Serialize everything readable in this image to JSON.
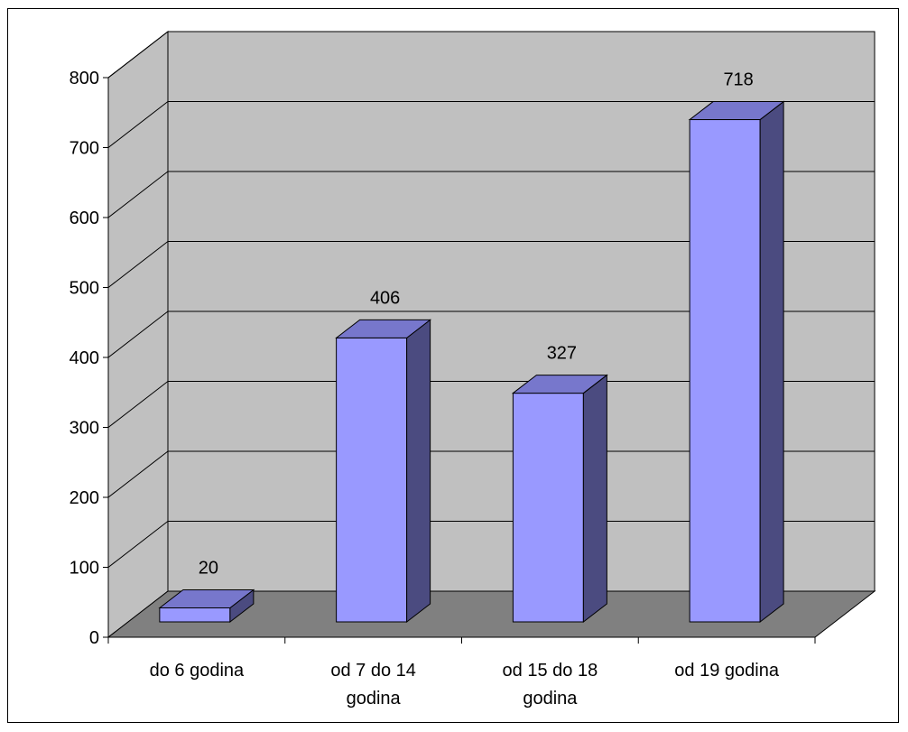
{
  "chart_data": {
    "type": "bar",
    "categories": [
      [
        "do 6 godina"
      ],
      [
        "od 7 do 14",
        "godina"
      ],
      [
        "od 15 do 18",
        "godina"
      ],
      [
        "od 19 godina"
      ]
    ],
    "values": [
      20,
      406,
      327,
      718
    ],
    "data_labels": [
      "20",
      "406",
      "327",
      "718"
    ],
    "y_ticks": [
      "0",
      "100",
      "200",
      "300",
      "400",
      "500",
      "600",
      "700",
      "800"
    ],
    "ylim": [
      0,
      800
    ],
    "grid": true,
    "three_d": true,
    "colors": {
      "bar_front": "#9999FF",
      "bar_top": "#7777CC",
      "bar_side": "#4B4B80",
      "back_wall": "#C0C0C0",
      "side_wall": "#C0C0C0",
      "floor": "#808080",
      "gridline": "#000000"
    }
  }
}
